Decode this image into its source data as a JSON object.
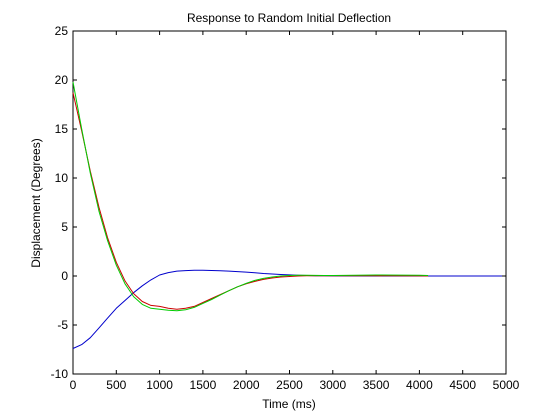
{
  "chart_data": {
    "type": "line",
    "title": "Response to Random Initial Deflection",
    "xlabel": "Time (ms)",
    "ylabel": "Displacement (Degrees)",
    "xlim": [
      0,
      5000
    ],
    "ylim": [
      -10,
      25
    ],
    "x_ticks": [
      0,
      500,
      1000,
      1500,
      2000,
      2500,
      3000,
      3500,
      4000,
      4500,
      5000
    ],
    "y_ticks": [
      -10,
      -5,
      0,
      5,
      10,
      15,
      20,
      25
    ],
    "grid": false,
    "legend": "none",
    "series": [
      {
        "color": "#0000cc",
        "x": [
          0,
          100,
          200,
          300,
          400,
          500,
          600,
          700,
          800,
          900,
          1000,
          1100,
          1200,
          1300,
          1400,
          1500,
          1600,
          1700,
          1800,
          1900,
          2000,
          2100,
          2200,
          2300,
          2400,
          2500,
          2600,
          2700,
          2800,
          2900,
          3000,
          3500,
          4000,
          4500,
          5000
        ],
        "values": [
          -7.4,
          -7.0,
          -6.3,
          -5.3,
          -4.3,
          -3.3,
          -2.5,
          -1.7,
          -1.0,
          -0.4,
          0.1,
          0.35,
          0.5,
          0.55,
          0.58,
          0.58,
          0.56,
          0.54,
          0.5,
          0.45,
          0.4,
          0.33,
          0.26,
          0.2,
          0.15,
          0.11,
          0.08,
          0.05,
          0.03,
          0.02,
          0.01,
          0.0,
          0.0,
          0.0,
          0.0
        ]
      },
      {
        "color": "#cc0000",
        "x": [
          0,
          100,
          200,
          300,
          400,
          500,
          600,
          700,
          800,
          900,
          1000,
          1100,
          1200,
          1300,
          1400,
          1500,
          1600,
          1700,
          1800,
          1900,
          2000,
          2100,
          2200,
          2300,
          2400,
          2500,
          2600,
          2700,
          2800,
          2900,
          3000,
          3500,
          4000,
          4100
        ],
        "values": [
          18.7,
          14.8,
          10.7,
          7.0,
          3.9,
          1.4,
          -0.5,
          -1.8,
          -2.6,
          -3.0,
          -3.1,
          -3.3,
          -3.4,
          -3.3,
          -3.1,
          -2.7,
          -2.3,
          -1.9,
          -1.5,
          -1.1,
          -0.8,
          -0.55,
          -0.35,
          -0.2,
          -0.1,
          -0.05,
          0.0,
          0.02,
          0.03,
          0.03,
          0.03,
          0.02,
          0.01,
          0.0
        ]
      },
      {
        "color": "#00cc00",
        "x": [
          0,
          100,
          200,
          300,
          400,
          500,
          600,
          700,
          800,
          900,
          1000,
          1100,
          1200,
          1300,
          1400,
          1500,
          1600,
          1700,
          1800,
          1900,
          2000,
          2100,
          2200,
          2300,
          2400,
          2500,
          2600,
          2700,
          2800,
          2900,
          3000,
          3500,
          4000,
          4100
        ],
        "values": [
          19.8,
          15.0,
          10.5,
          6.6,
          3.6,
          1.1,
          -0.8,
          -2.1,
          -2.9,
          -3.3,
          -3.4,
          -3.5,
          -3.55,
          -3.45,
          -3.2,
          -2.8,
          -2.4,
          -1.95,
          -1.5,
          -1.1,
          -0.75,
          -0.45,
          -0.25,
          -0.1,
          0.0,
          0.05,
          0.07,
          0.07,
          0.06,
          0.05,
          0.05,
          0.1,
          0.08,
          0.05
        ]
      }
    ]
  }
}
